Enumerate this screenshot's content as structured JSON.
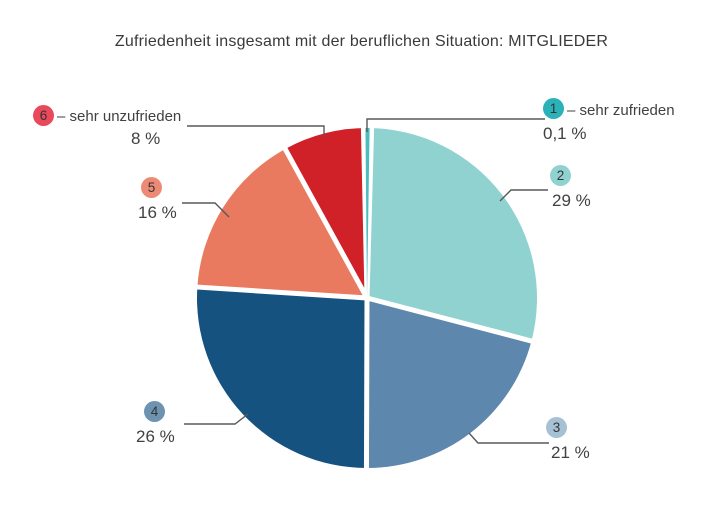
{
  "title": "Zufriedenheit insgesamt mit der beruflichen Situation: MITGLIEDER",
  "chart_data": {
    "type": "pie",
    "title": "Zufriedenheit insgesamt mit der beruflichen Situation: MITGLIEDER",
    "unit": "%",
    "start_angle": "12-o'clock",
    "direction": "clockwise",
    "legend_position": "callout labels around pie",
    "gap_color": "#ffffff",
    "slices": [
      {
        "id": "1",
        "label": "sehr zufrieden",
        "callout_label": "– sehr zufrieden",
        "value": 0.1,
        "display": "0,1 %",
        "color": "#4cbcbf",
        "badge_color": "#2ab2b8"
      },
      {
        "id": "2",
        "label": "2",
        "callout_label": "",
        "value": 29,
        "display": "29 %",
        "color": "#8fd2d0",
        "badge_color": "#8fd2d0"
      },
      {
        "id": "3",
        "label": "3",
        "callout_label": "",
        "value": 21,
        "display": "21 %",
        "color": "#5d87ac",
        "badge_color": "#a6c1d4"
      },
      {
        "id": "4",
        "label": "4",
        "callout_label": "",
        "value": 26,
        "display": "26 %",
        "color": "#16527f",
        "badge_color": "#6d93b1"
      },
      {
        "id": "5",
        "label": "5",
        "callout_label": "",
        "value": 16,
        "display": "16 %",
        "color": "#e97a5f",
        "badge_color": "#ed8a75"
      },
      {
        "id": "6",
        "label": "sehr unzufrieden",
        "callout_label": "– sehr unzufrieden",
        "value": 8,
        "display": "8 %",
        "color": "#d02028",
        "badge_color": "#e8495b"
      }
    ]
  }
}
